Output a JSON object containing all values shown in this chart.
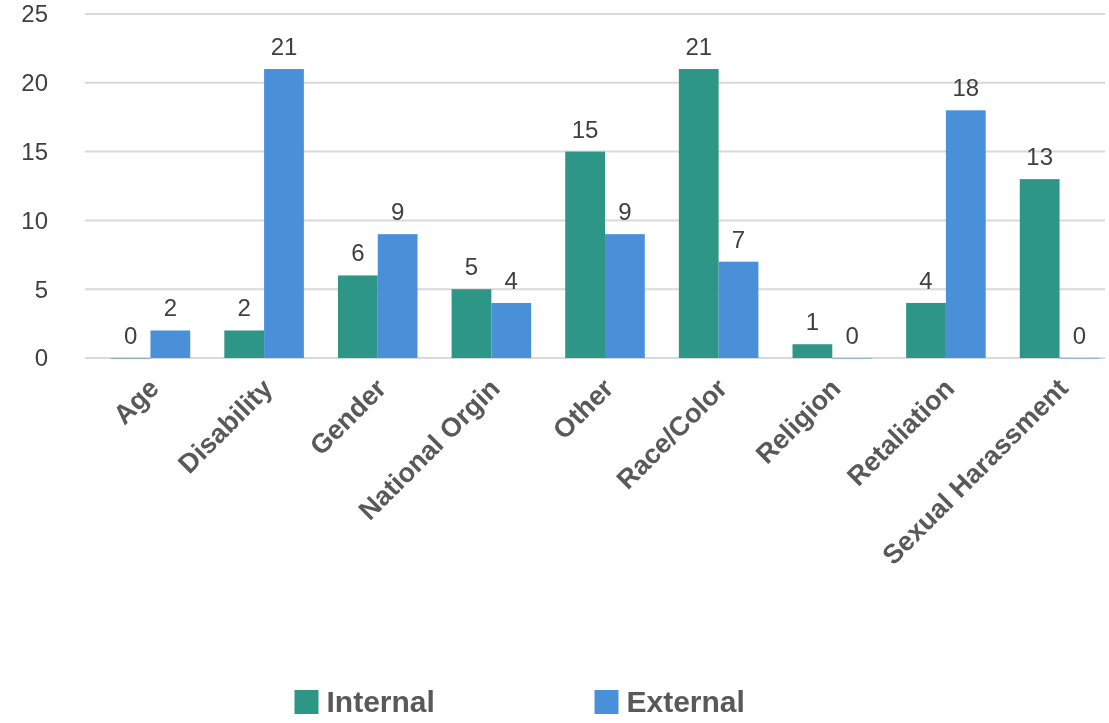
{
  "chart_data": {
    "type": "bar",
    "categories": [
      "Age",
      "Disability",
      "Gender",
      "National Orgin",
      "Other",
      "Race/Color",
      "Religion",
      "Retaliation",
      "Sexual Harassment"
    ],
    "series": [
      {
        "name": "Internal",
        "color": "#2e9686",
        "values": [
          0,
          2,
          6,
          5,
          15,
          21,
          1,
          4,
          13
        ]
      },
      {
        "name": "External",
        "color": "#4a90d9",
        "values": [
          2,
          21,
          9,
          4,
          9,
          7,
          0,
          18,
          0
        ]
      }
    ],
    "ylim": [
      0,
      25
    ],
    "yticks": [
      0,
      5,
      10,
      15,
      20,
      25
    ],
    "grid": "y",
    "legend": "bottom",
    "data_labels": true
  }
}
